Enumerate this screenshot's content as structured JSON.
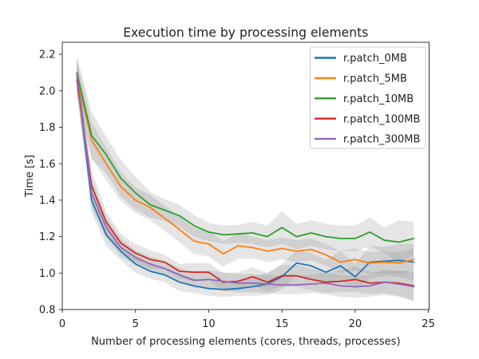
{
  "chart_data": {
    "type": "line",
    "title": "Execution time by processing elements",
    "xlabel": "Number of processing elements (cores, threads, processes)",
    "ylabel": "Time [s]",
    "grid": false,
    "legend_position": "upper right",
    "band_color": "#8a8a8a",
    "band_opacity": 0.22,
    "xlim": [
      0,
      25.05
    ],
    "ylim": [
      0.8,
      2.266
    ],
    "x_tick_values": [
      0,
      5,
      10,
      15,
      20,
      25
    ],
    "x_tick_labels": [
      "0",
      "5",
      "10",
      "15",
      "20",
      "25"
    ],
    "y_tick_values": [
      0.8,
      1.0,
      1.2,
      1.4,
      1.6,
      1.8,
      2.0,
      2.2
    ],
    "y_tick_labels": [
      "0.8",
      "1.0",
      "1.2",
      "1.4",
      "1.6",
      "1.8",
      "2.0",
      "2.2"
    ],
    "x": [
      1,
      2,
      3,
      4,
      5,
      6,
      7,
      8,
      9,
      10,
      11,
      12,
      13,
      14,
      15,
      16,
      17,
      18,
      19,
      20,
      21,
      22,
      23,
      24
    ],
    "series": [
      {
        "name": "r.patch_0MB",
        "color": "#1f77b4",
        "values": [
          2.09,
          1.4,
          1.21,
          1.12,
          1.05,
          1.01,
          0.99,
          0.95,
          0.93,
          0.915,
          0.91,
          0.915,
          0.925,
          0.94,
          0.98,
          1.055,
          1.04,
          1.005,
          1.04,
          0.98,
          1.06,
          1.065,
          1.07,
          1.06
        ],
        "band": [
          0.09,
          0.07,
          0.06,
          0.05,
          0.05,
          0.04,
          0.04,
          0.05,
          0.04,
          0.04,
          0.04,
          0.04,
          0.05,
          0.06,
          0.07,
          0.07,
          0.07,
          0.07,
          0.08,
          0.07,
          0.09,
          0.08,
          0.09,
          0.1
        ]
      },
      {
        "name": "r.patch_5MB",
        "color": "#ff7f0e",
        "values": [
          2.08,
          1.73,
          1.6,
          1.475,
          1.4,
          1.36,
          1.3,
          1.24,
          1.175,
          1.16,
          1.105,
          1.15,
          1.14,
          1.12,
          1.135,
          1.12,
          1.13,
          1.1,
          1.06,
          1.075,
          1.055,
          1.06,
          1.055,
          1.075
        ],
        "band": [
          0.09,
          0.1,
          0.09,
          0.08,
          0.07,
          0.07,
          0.07,
          0.07,
          0.07,
          0.07,
          0.07,
          0.07,
          0.06,
          0.06,
          0.06,
          0.06,
          0.06,
          0.06,
          0.06,
          0.06,
          0.06,
          0.06,
          0.06,
          0.06
        ]
      },
      {
        "name": "r.patch_10MB",
        "color": "#2ca02c",
        "values": [
          2.1,
          1.755,
          1.65,
          1.52,
          1.44,
          1.375,
          1.345,
          1.315,
          1.26,
          1.225,
          1.21,
          1.215,
          1.22,
          1.2,
          1.25,
          1.2,
          1.22,
          1.2,
          1.19,
          1.19,
          1.225,
          1.18,
          1.17,
          1.19
        ],
        "band": [
          0.09,
          0.13,
          0.1,
          0.1,
          0.09,
          0.07,
          0.06,
          0.06,
          0.06,
          0.05,
          0.05,
          0.05,
          0.06,
          0.06,
          0.09,
          0.07,
          0.07,
          0.07,
          0.07,
          0.07,
          0.08,
          0.07,
          0.12,
          0.09
        ]
      },
      {
        "name": "r.patch_100MB",
        "color": "#d62728",
        "values": [
          2.06,
          1.48,
          1.28,
          1.165,
          1.11,
          1.075,
          1.06,
          1.01,
          1.005,
          1.005,
          0.95,
          0.955,
          0.98,
          0.95,
          0.985,
          0.985,
          0.965,
          0.95,
          0.955,
          0.965,
          0.945,
          0.95,
          0.945,
          0.93
        ],
        "band": [
          0.09,
          0.08,
          0.06,
          0.05,
          0.05,
          0.05,
          0.04,
          0.04,
          0.05,
          0.05,
          0.05,
          0.05,
          0.05,
          0.05,
          0.06,
          0.06,
          0.06,
          0.06,
          0.06,
          0.07,
          0.06,
          0.06,
          0.07,
          0.08
        ]
      },
      {
        "name": "r.patch_300MB",
        "color": "#9467bd",
        "values": [
          2.1,
          1.44,
          1.25,
          1.14,
          1.085,
          1.05,
          1.025,
          0.99,
          0.96,
          0.965,
          0.955,
          0.945,
          0.945,
          0.94,
          0.935,
          0.935,
          0.94,
          0.945,
          0.93,
          0.925,
          0.93,
          0.95,
          0.94,
          0.925
        ],
        "band": [
          0.09,
          0.08,
          0.06,
          0.05,
          0.04,
          0.04,
          0.04,
          0.04,
          0.04,
          0.05,
          0.05,
          0.05,
          0.05,
          0.05,
          0.05,
          0.05,
          0.05,
          0.06,
          0.06,
          0.06,
          0.06,
          0.07,
          0.07,
          0.08
        ]
      }
    ]
  }
}
